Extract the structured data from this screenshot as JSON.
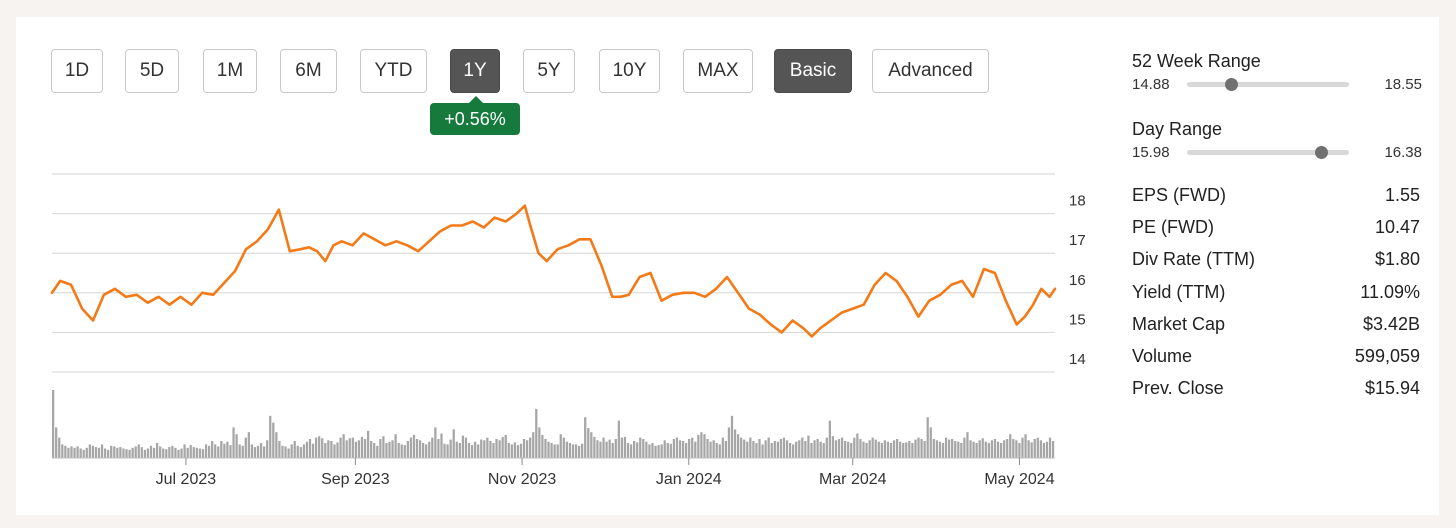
{
  "timeframe_tabs": [
    {
      "label": "1D",
      "active": false
    },
    {
      "label": "5D",
      "active": false
    },
    {
      "label": "1M",
      "active": false
    },
    {
      "label": "6M",
      "active": false
    },
    {
      "label": "YTD",
      "active": false
    },
    {
      "label": "1Y",
      "active": true
    },
    {
      "label": "5Y",
      "active": false
    },
    {
      "label": "10Y",
      "active": false
    },
    {
      "label": "MAX",
      "active": false
    }
  ],
  "view_tabs": [
    {
      "label": "Basic",
      "active": true
    },
    {
      "label": "Advanced",
      "active": false
    }
  ],
  "change_badge": {
    "text": "+0.56%",
    "color": "#157a3c"
  },
  "colors": {
    "price_line": "#f47a17",
    "volume_bars": "#a6a6a6",
    "grid": "#d6d6d6",
    "active_tab": "#555555"
  },
  "stats": {
    "week52": {
      "label": "52 Week Range",
      "low": "14.88",
      "high": "18.55",
      "position": 0.27
    },
    "day": {
      "label": "Day Range",
      "low": "15.98",
      "high": "16.38",
      "position": 0.83
    },
    "rows": [
      {
        "label": "EPS (FWD)",
        "value": "1.55"
      },
      {
        "label": "PE (FWD)",
        "value": "10.47"
      },
      {
        "label": "Div Rate (TTM)",
        "value": "$1.80"
      },
      {
        "label": "Yield (TTM)",
        "value": "11.09%"
      },
      {
        "label": "Market Cap",
        "value": "$3.42B"
      },
      {
        "label": "Volume",
        "value": "599,059"
      },
      {
        "label": "Prev. Close",
        "value": "$15.94"
      }
    ]
  },
  "chart_data": {
    "type": "line",
    "title": "",
    "xlabel": "",
    "ylabel": "",
    "ylim": [
      14,
      19
    ],
    "yticks": [
      14,
      15,
      16,
      17,
      18
    ],
    "x_tick_labels": [
      "Jul 2023",
      "Sep 2023",
      "Nov 2023",
      "Jan 2024",
      "Mar 2024",
      "May 2024"
    ],
    "x_tick_dates": [
      "2023-07-01",
      "2023-09-01",
      "2023-11-01",
      "2024-01-01",
      "2024-03-01",
      "2024-05-01"
    ],
    "xlim": [
      "2023-05-13",
      "2024-05-14"
    ],
    "grid": true,
    "series": [
      {
        "x": [
          "2023-05-13",
          "2023-05-16",
          "2023-05-20",
          "2023-05-24",
          "2023-05-28",
          "2023-06-01",
          "2023-06-05",
          "2023-06-09",
          "2023-06-13",
          "2023-06-17",
          "2023-06-21",
          "2023-06-25",
          "2023-06-29",
          "2023-07-03",
          "2023-07-07",
          "2023-07-11",
          "2023-07-15",
          "2023-07-19",
          "2023-07-23",
          "2023-07-27",
          "2023-07-31",
          "2023-08-04",
          "2023-08-08",
          "2023-08-12",
          "2023-08-15",
          "2023-08-18",
          "2023-08-21",
          "2023-08-24",
          "2023-08-27",
          "2023-08-31",
          "2023-09-04",
          "2023-09-08",
          "2023-09-12",
          "2023-09-16",
          "2023-09-20",
          "2023-09-24",
          "2023-09-28",
          "2023-10-02",
          "2023-10-06",
          "2023-10-10",
          "2023-10-14",
          "2023-10-18",
          "2023-10-22",
          "2023-10-26",
          "2023-10-30",
          "2023-11-02",
          "2023-11-04",
          "2023-11-07",
          "2023-11-10",
          "2023-11-14",
          "2023-11-18",
          "2023-11-22",
          "2023-11-26",
          "2023-11-30",
          "2023-12-04",
          "2023-12-07",
          "2023-12-10",
          "2023-12-14",
          "2023-12-18",
          "2023-12-22",
          "2023-12-26",
          "2023-12-30",
          "2024-01-03",
          "2024-01-07",
          "2024-01-11",
          "2024-01-15",
          "2024-01-19",
          "2024-01-23",
          "2024-01-27",
          "2024-01-31",
          "2024-02-04",
          "2024-02-08",
          "2024-02-12",
          "2024-02-15",
          "2024-02-18",
          "2024-02-22",
          "2024-02-26",
          "2024-03-01",
          "2024-03-05",
          "2024-03-09",
          "2024-03-13",
          "2024-03-17",
          "2024-03-21",
          "2024-03-25",
          "2024-03-29",
          "2024-04-02",
          "2024-04-06",
          "2024-04-10",
          "2024-04-14",
          "2024-04-18",
          "2024-04-22",
          "2024-04-26",
          "2024-04-30",
          "2024-05-03",
          "2024-05-06",
          "2024-05-09",
          "2024-05-12",
          "2024-05-14"
        ],
        "values": [
          16.0,
          16.3,
          16.2,
          15.6,
          15.3,
          15.95,
          16.1,
          15.9,
          15.95,
          15.75,
          15.9,
          15.7,
          15.9,
          15.7,
          16.0,
          15.95,
          16.25,
          16.55,
          17.1,
          17.3,
          17.6,
          18.1,
          17.05,
          17.1,
          17.15,
          17.05,
          16.8,
          17.2,
          17.3,
          17.2,
          17.5,
          17.35,
          17.2,
          17.3,
          17.2,
          17.05,
          17.3,
          17.55,
          17.7,
          17.7,
          17.8,
          17.65,
          17.9,
          17.8,
          18.0,
          18.2,
          17.7,
          17.0,
          16.8,
          17.1,
          17.2,
          17.35,
          17.35,
          16.7,
          15.9,
          15.9,
          15.95,
          16.4,
          16.5,
          15.8,
          15.95,
          16.0,
          16.0,
          15.9,
          16.1,
          16.4,
          16.0,
          15.6,
          15.45,
          15.2,
          15.0,
          15.3,
          15.1,
          14.9,
          15.1,
          15.3,
          15.5,
          15.6,
          15.7,
          16.2,
          16.5,
          16.3,
          15.9,
          15.4,
          15.8,
          15.95,
          16.2,
          16.3,
          15.9,
          16.6,
          16.5,
          15.8,
          15.2,
          15.4,
          15.7,
          16.1,
          15.9,
          16.1
        ]
      }
    ],
    "volume": {
      "unit": "relative",
      "values": [
        1.0,
        0.45,
        0.3,
        0.2,
        0.18,
        0.15,
        0.17,
        0.15,
        0.17,
        0.14,
        0.12,
        0.15,
        0.2,
        0.18,
        0.16,
        0.15,
        0.2,
        0.14,
        0.12,
        0.18,
        0.17,
        0.15,
        0.16,
        0.14,
        0.13,
        0.12,
        0.15,
        0.17,
        0.2,
        0.16,
        0.12,
        0.14,
        0.18,
        0.15,
        0.22,
        0.17,
        0.14,
        0.13,
        0.16,
        0.18,
        0.15,
        0.12,
        0.14,
        0.2,
        0.15,
        0.19,
        0.16,
        0.15,
        0.14,
        0.13,
        0.2,
        0.18,
        0.25,
        0.2,
        0.17,
        0.25,
        0.21,
        0.24,
        0.19,
        0.45,
        0.35,
        0.2,
        0.18,
        0.3,
        0.38,
        0.2,
        0.16,
        0.18,
        0.22,
        0.17,
        0.26,
        0.62,
        0.52,
        0.38,
        0.25,
        0.18,
        0.17,
        0.14,
        0.2,
        0.25,
        0.18,
        0.16,
        0.2,
        0.24,
        0.28,
        0.21,
        0.3,
        0.32,
        0.29,
        0.22,
        0.26,
        0.25,
        0.2,
        0.23,
        0.3,
        0.35,
        0.26,
        0.29,
        0.3,
        0.24,
        0.26,
        0.31,
        0.28,
        0.4,
        0.25,
        0.22,
        0.18,
        0.28,
        0.32,
        0.22,
        0.24,
        0.26,
        0.35,
        0.22,
        0.2,
        0.19,
        0.25,
        0.3,
        0.34,
        0.28,
        0.26,
        0.22,
        0.2,
        0.24,
        0.3,
        0.45,
        0.28,
        0.36,
        0.21,
        0.2,
        0.27,
        0.42,
        0.24,
        0.22,
        0.33,
        0.3,
        0.22,
        0.19,
        0.24,
        0.2,
        0.27,
        0.26,
        0.3,
        0.25,
        0.22,
        0.28,
        0.26,
        0.31,
        0.34,
        0.22,
        0.2,
        0.23,
        0.19,
        0.21,
        0.28,
        0.26,
        0.3,
        0.38,
        0.72,
        0.45,
        0.34,
        0.28,
        0.24,
        0.22,
        0.2,
        0.2,
        0.35,
        0.3,
        0.24,
        0.22,
        0.2,
        0.2,
        0.18,
        0.21,
        0.6,
        0.44,
        0.38,
        0.31,
        0.26,
        0.24,
        0.3,
        0.24,
        0.27,
        0.22,
        0.28,
        0.55,
        0.3,
        0.31,
        0.22,
        0.2,
        0.25,
        0.23,
        0.3,
        0.28,
        0.24,
        0.2,
        0.22,
        0.18,
        0.19,
        0.2,
        0.26,
        0.22,
        0.21,
        0.28,
        0.3,
        0.26,
        0.25,
        0.22,
        0.28,
        0.3,
        0.24,
        0.34,
        0.38,
        0.35,
        0.28,
        0.24,
        0.26,
        0.22,
        0.2,
        0.3,
        0.25,
        0.45,
        0.62,
        0.42,
        0.35,
        0.3,
        0.27,
        0.24,
        0.3,
        0.25,
        0.22,
        0.28,
        0.2,
        0.26,
        0.3,
        0.22,
        0.25,
        0.24,
        0.28,
        0.3,
        0.26,
        0.22,
        0.2,
        0.24,
        0.26,
        0.3,
        0.25,
        0.33,
        0.22,
        0.26,
        0.28,
        0.24,
        0.22,
        0.3,
        0.55,
        0.32,
        0.26,
        0.28,
        0.3,
        0.25,
        0.24,
        0.22,
        0.3,
        0.36,
        0.28,
        0.24,
        0.22,
        0.26,
        0.3,
        0.27,
        0.24,
        0.22,
        0.26,
        0.24,
        0.22,
        0.26,
        0.28,
        0.24,
        0.22,
        0.23,
        0.25,
        0.22,
        0.27,
        0.3,
        0.28,
        0.25,
        0.6,
        0.45,
        0.28,
        0.26,
        0.24,
        0.22,
        0.3,
        0.27,
        0.28,
        0.25,
        0.24,
        0.22,
        0.3,
        0.38,
        0.26,
        0.24,
        0.22,
        0.26,
        0.29,
        0.24,
        0.22,
        0.26,
        0.28,
        0.24,
        0.22,
        0.26,
        0.28,
        0.35,
        0.28,
        0.26,
        0.22,
        0.3,
        0.35,
        0.26,
        0.23,
        0.28,
        0.3,
        0.26,
        0.22,
        0.24,
        0.3,
        0.25
      ]
    }
  }
}
